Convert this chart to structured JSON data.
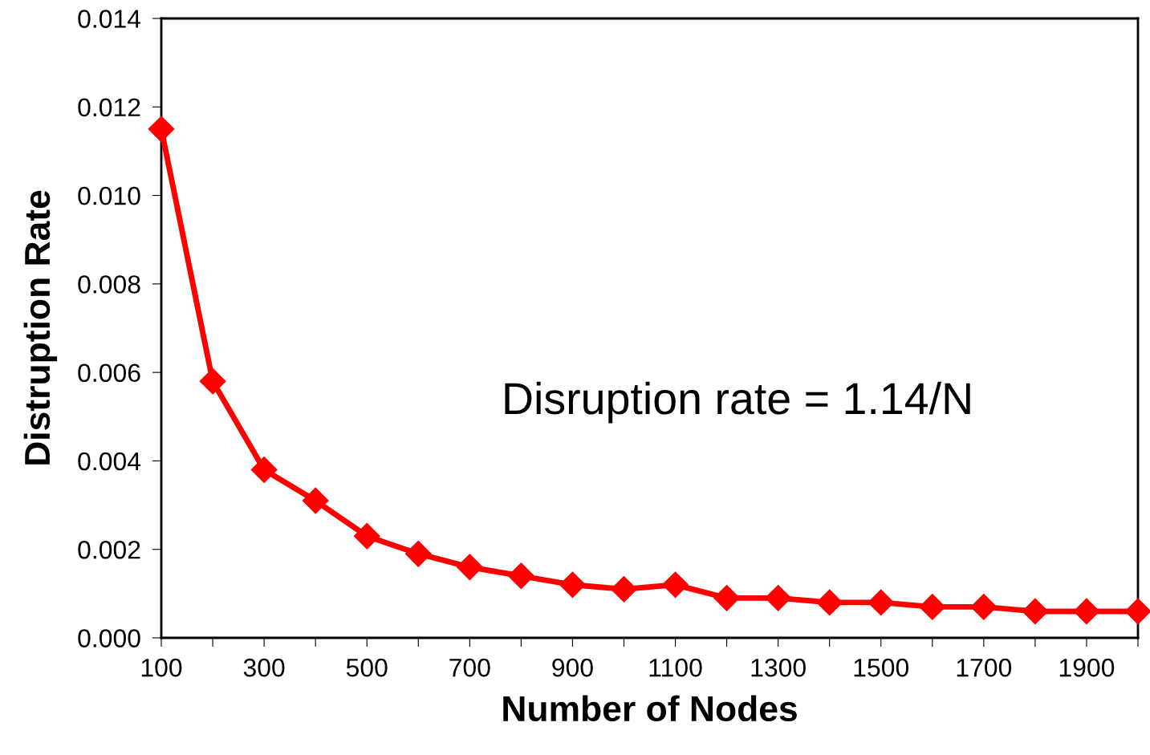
{
  "chart_data": {
    "type": "line",
    "xlabel": "Number of Nodes",
    "ylabel": "Distruption Rate",
    "annotations": [
      "Disruption rate = 1.14/N"
    ],
    "x": [
      100,
      200,
      300,
      400,
      500,
      600,
      700,
      800,
      900,
      1000,
      1100,
      1200,
      1300,
      1400,
      1500,
      1600,
      1700,
      1800,
      1900,
      2000
    ],
    "series": [
      {
        "color": "#ff0000",
        "values": [
          0.0115,
          0.0058,
          0.0038,
          0.0031,
          0.0023,
          0.0019,
          0.0016,
          0.0014,
          0.0012,
          0.0011,
          0.0012,
          0.0009,
          0.0009,
          0.0008,
          0.0008,
          0.0007,
          0.0007,
          0.0006,
          0.0006,
          0.0006
        ]
      }
    ],
    "marker": "diamond",
    "line_style": "solid",
    "grid": false,
    "xlim": [
      100,
      2000
    ],
    "xticks": [
      100,
      {
        "value": 200,
        "label": null
      },
      300,
      {
        "value": 400,
        "label": null
      },
      500,
      {
        "value": 600,
        "label": null
      },
      700,
      {
        "value": 800,
        "label": null
      },
      900,
      {
        "value": 1000,
        "label": null
      },
      1100,
      {
        "value": 1200,
        "label": null
      },
      1300,
      {
        "value": 1400,
        "label": null
      },
      1500,
      {
        "value": 1600,
        "label": null
      },
      1700,
      {
        "value": 1800,
        "label": null
      },
      1900,
      {
        "value": 2000,
        "label": null
      }
    ],
    "ylim": [
      0,
      0.014
    ],
    "yticks": [
      {
        "value": 0,
        "label": "0.000"
      },
      {
        "value": 0.002,
        "label": "0.002"
      },
      {
        "value": 0.004,
        "label": "0.004"
      },
      {
        "value": 0.006,
        "label": "0.006"
      },
      {
        "value": 0.008,
        "label": "0.008"
      },
      {
        "value": 0.01,
        "label": "0.010"
      },
      {
        "value": 0.012,
        "label": "0.012"
      },
      {
        "value": 0.014,
        "label": "0.014"
      }
    ]
  }
}
